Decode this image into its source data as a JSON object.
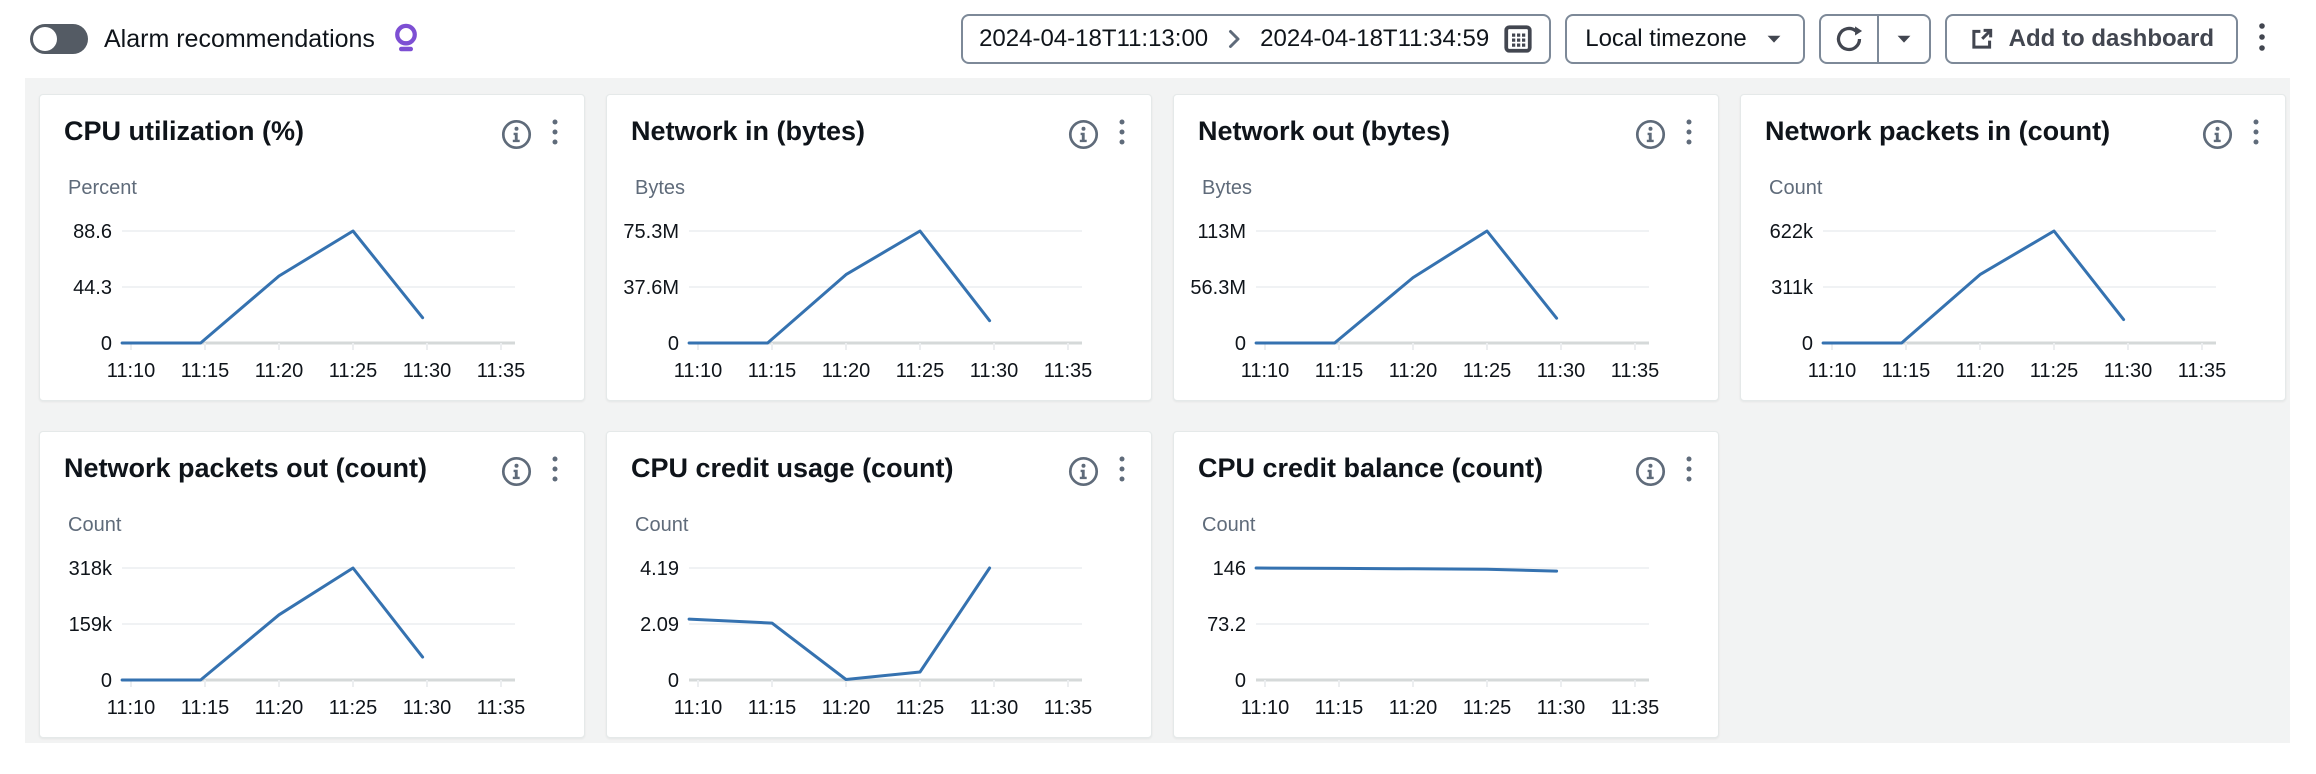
{
  "toolbar": {
    "alarm_toggle": {
      "label": "Alarm recommendations",
      "state": "off"
    },
    "suggestion_color": "#7d4fd3",
    "time_range": {
      "start": "2024-04-18T11:13:00",
      "end": "2024-04-18T11:34:59"
    },
    "timezone_selector": {
      "value": "Local timezone"
    },
    "add_to_dashboard_label": "Add to dashboard"
  },
  "chart_config": {
    "x_ticks": [
      "11:10",
      "11:15",
      "11:20",
      "11:25",
      "11:30",
      "11:35"
    ],
    "x_axis_window": "11:09 - 11:36",
    "line_color": "#3572b0",
    "grid_color": "#eceef0",
    "baseline_color": "#d5d9d9",
    "legend": "none",
    "grid": "horizontal-only"
  },
  "chart_data": [
    {
      "type": "line",
      "title": "CPU utilization (%)",
      "ylabel": "Percent",
      "y_ticks": [
        "88.6",
        "44.3",
        "0"
      ],
      "y_top": 88.6,
      "points": [
        [
          -0.6,
          0
        ],
        [
          4.7,
          0
        ],
        [
          10,
          53
        ],
        [
          15,
          88.6
        ],
        [
          19.7,
          20
        ]
      ]
    },
    {
      "type": "line",
      "title": "Network in (bytes)",
      "ylabel": "Bytes",
      "y_ticks": [
        "75.3M",
        "37.6M",
        "0"
      ],
      "y_top": 75.3,
      "points": [
        [
          -0.6,
          0
        ],
        [
          4.7,
          0
        ],
        [
          10,
          46
        ],
        [
          15,
          75.3
        ],
        [
          19.7,
          15
        ]
      ]
    },
    {
      "type": "line",
      "title": "Network out (bytes)",
      "ylabel": "Bytes",
      "y_ticks": [
        "113M",
        "56.3M",
        "0"
      ],
      "y_top": 113,
      "points": [
        [
          -0.6,
          0
        ],
        [
          4.7,
          0
        ],
        [
          10,
          66
        ],
        [
          15,
          113
        ],
        [
          19.7,
          25
        ]
      ]
    },
    {
      "type": "line",
      "title": "Network packets in (count)",
      "ylabel": "Count",
      "y_ticks": [
        "622k",
        "311k",
        "0"
      ],
      "y_top": 622,
      "points": [
        [
          -0.6,
          0
        ],
        [
          4.7,
          0
        ],
        [
          10,
          380
        ],
        [
          15,
          622
        ],
        [
          19.7,
          130
        ]
      ]
    },
    {
      "type": "line",
      "title": "Network packets out (count)",
      "ylabel": "Count",
      "y_ticks": [
        "318k",
        "159k",
        "0"
      ],
      "y_top": 318,
      "points": [
        [
          -0.6,
          0
        ],
        [
          4.7,
          0
        ],
        [
          10,
          185
        ],
        [
          15,
          318
        ],
        [
          19.7,
          65
        ]
      ]
    },
    {
      "type": "line",
      "title": "CPU credit usage (count)",
      "ylabel": "Count",
      "y_ticks": [
        "4.19",
        "2.09",
        "0"
      ],
      "y_top": 4.19,
      "points": [
        [
          -0.6,
          2.28
        ],
        [
          5,
          2.13
        ],
        [
          10,
          0.02
        ],
        [
          15,
          0.3
        ],
        [
          19.7,
          4.19
        ]
      ]
    },
    {
      "type": "line",
      "title": "CPU credit balance (count)",
      "ylabel": "Count",
      "y_ticks": [
        "146",
        "73.2",
        "0"
      ],
      "y_top": 146,
      "points": [
        [
          -0.6,
          146
        ],
        [
          5,
          145.5
        ],
        [
          10,
          145
        ],
        [
          15,
          144.5
        ],
        [
          19.7,
          142
        ]
      ]
    }
  ]
}
